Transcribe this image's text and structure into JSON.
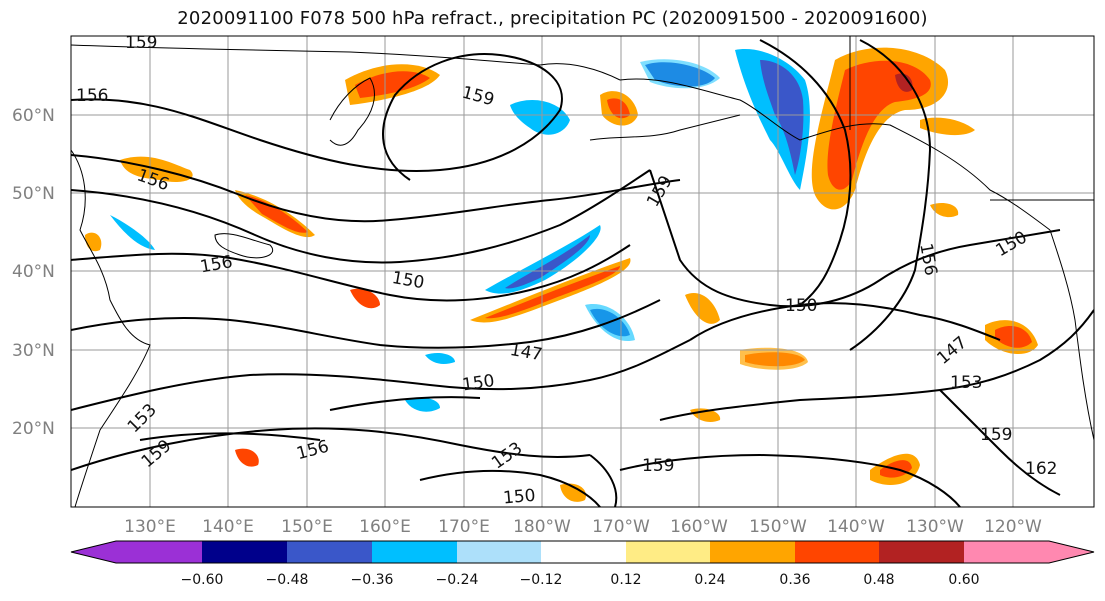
{
  "title": "2020091100 F078 500 hPa refract., precipitation PC (2020091500 - 2020091600)",
  "lat_labels": [
    "60°N",
    "50°N",
    "40°N",
    "30°N",
    "20°N"
  ],
  "lon_labels": [
    "130°E",
    "140°E",
    "150°E",
    "160°E",
    "170°E",
    "180°W",
    "170°W",
    "160°W",
    "150°W",
    "140°W",
    "130°W",
    "120°W"
  ],
  "colorbar": {
    "tick_labels": [
      "−0.60",
      "−0.48",
      "−0.36",
      "−0.24",
      "−0.12",
      "0.12",
      "0.24",
      "0.36",
      "0.48",
      "0.60"
    ],
    "colors": [
      "#9b30d6",
      "#00008b",
      "#3a57c9",
      "#00bfff",
      "#ade0fa",
      "#ffffff",
      "#ffec85",
      "#ffa500",
      "#ff4500",
      "#b22222",
      "#ff88b0"
    ]
  },
  "contour_labels": [
    "156",
    "159",
    "159",
    "156",
    "159",
    "150",
    "147",
    "150",
    "153",
    "150",
    "156",
    "159",
    "153",
    "159",
    "150",
    "147",
    "153",
    "159",
    "162",
    "156",
    "150",
    "156"
  ],
  "fill_colors": {
    "orange": "#ffa500",
    "red": "#ff4500",
    "yellow": "#ffec85",
    "lightblue": "#ade0fa",
    "cyan": "#00bfff",
    "blue": "#3a57c9"
  }
}
